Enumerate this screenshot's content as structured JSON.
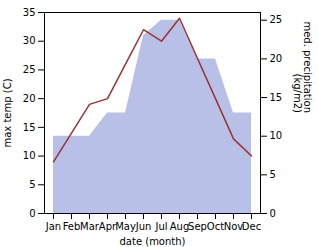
{
  "chart_data": {
    "type": "line",
    "xlabel": "date (month)",
    "ylabel": "max temp (C)",
    "y2label": "med. precipitation\n(kg/m2)",
    "categories": [
      "Jan",
      "Feb",
      "Mar",
      "Apr",
      "May",
      "Jun",
      "Jul",
      "Aug",
      "Sep",
      "Oct",
      "Nov",
      "Dec"
    ],
    "series": [
      {
        "type": "area",
        "axis": "y2",
        "color": "#b8c0e8",
        "values": [
          10,
          10,
          10,
          13,
          13,
          23,
          25,
          25,
          20,
          20,
          13,
          13
        ]
      },
      {
        "type": "line",
        "color": "#993333",
        "values": [
          9,
          14,
          19,
          20,
          26,
          32,
          30,
          34,
          27,
          20,
          13,
          10
        ]
      }
    ],
    "ylim": [
      0,
      35
    ],
    "yticks": [
      0,
      5,
      10,
      15,
      20,
      25,
      30,
      35
    ],
    "y2lim": [
      0,
      26
    ],
    "y2ticks": [
      0,
      5,
      10,
      15,
      20,
      25
    ]
  }
}
